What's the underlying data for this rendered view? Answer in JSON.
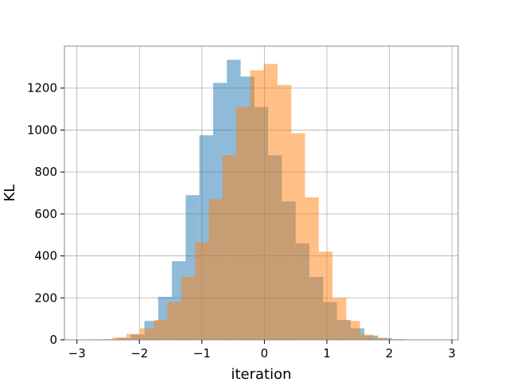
{
  "chart_data": {
    "type": "bar",
    "xlabel": "iteration",
    "ylabel": "KL",
    "xlim": [
      -3.2,
      3.1
    ],
    "ylim": [
      0,
      1400
    ],
    "xticks": [
      -3,
      -2,
      -1,
      0,
      1,
      2,
      3
    ],
    "xtick_labels": [
      "−3",
      "−2",
      "−1",
      "0",
      "1",
      "2",
      "3"
    ],
    "yticks": [
      0,
      200,
      400,
      600,
      800,
      1000,
      1200
    ],
    "ytick_labels": [
      "0",
      "200",
      "400",
      "600",
      "800",
      "1000",
      "1200"
    ],
    "grid": true,
    "series": [
      {
        "color": "#1f77b4",
        "opacity": 0.5,
        "bin_edges": [
          -2.8,
          -2.58,
          -2.36,
          -2.14,
          -1.92,
          -1.7,
          -1.48,
          -1.26,
          -1.04,
          -0.82,
          -0.6,
          -0.38,
          -0.16,
          0.06,
          0.28,
          0.5,
          0.72,
          0.94,
          1.16,
          1.38,
          1.6,
          1.82,
          2.04,
          2.26,
          2.48,
          2.7
        ],
        "values": [
          2,
          3,
          8,
          25,
          90,
          205,
          375,
          690,
          975,
          1225,
          1335,
          1255,
          1110,
          880,
          660,
          460,
          300,
          180,
          95,
          55,
          20,
          8,
          3,
          1,
          1
        ]
      },
      {
        "color": "#ff7f0e",
        "opacity": 0.5,
        "bin_edges": [
          -2.65,
          -2.43,
          -2.21,
          -1.99,
          -1.77,
          -1.55,
          -1.33,
          -1.11,
          -0.89,
          -0.67,
          -0.45,
          -0.23,
          -0.01,
          0.21,
          0.43,
          0.65,
          0.87,
          1.09,
          1.31,
          1.53,
          1.75,
          1.97,
          2.19,
          2.41
        ],
        "values": [
          2,
          12,
          28,
          55,
          95,
          180,
          300,
          465,
          670,
          880,
          1110,
          1285,
          1315,
          1215,
          985,
          680,
          420,
          200,
          90,
          25,
          10,
          3,
          1
        ]
      }
    ]
  }
}
